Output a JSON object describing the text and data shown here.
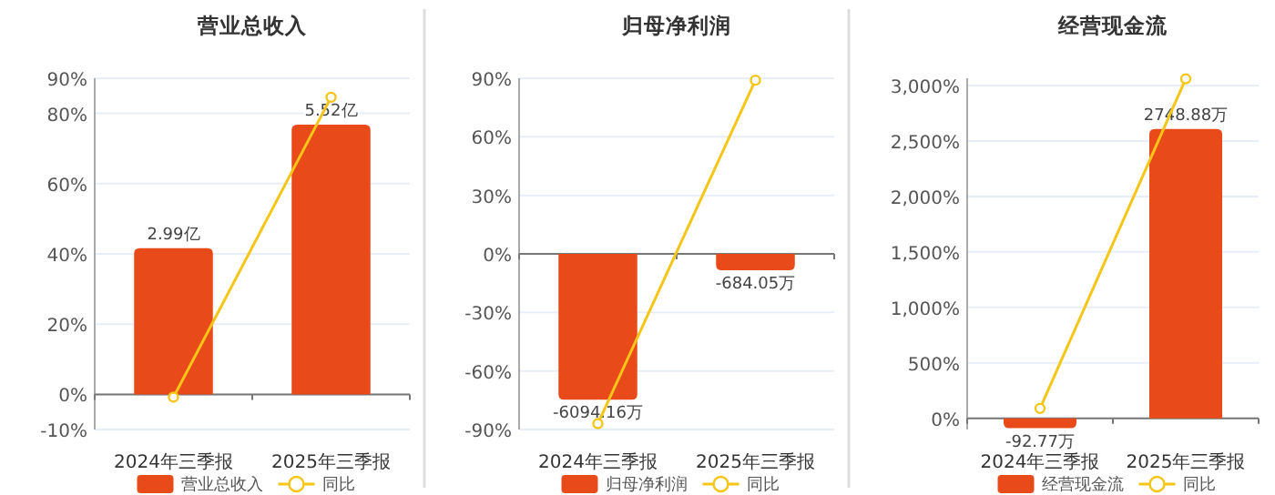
{
  "chart_data": [
    {
      "type": "bar",
      "title": "营业总收入",
      "categories": [
        "2024年三季报",
        "2025年三季报"
      ],
      "ylim": [
        -10,
        90
      ],
      "yticks": [
        {
          "value": -10,
          "label": "-10%"
        },
        {
          "value": 0,
          "label": "0%"
        },
        {
          "value": 20,
          "label": "20%"
        },
        {
          "value": 40,
          "label": "40%"
        },
        {
          "value": 60,
          "label": "60%"
        },
        {
          "value": 80,
          "label": "80%"
        },
        {
          "value": 90,
          "label": "90%"
        }
      ],
      "y2lim": [
        -0.719,
        6.47
      ],
      "grid": "y",
      "legend": "bottom",
      "marker": "circle",
      "series": [
        {
          "name": "营业总收入",
          "axis": "y2",
          "color": "#e84a1a",
          "values": [
            2.99,
            5.52
          ],
          "value_labels": [
            "2.99亿",
            "5.52亿"
          ]
        },
        {
          "name": "同比",
          "type": "line",
          "color": "#f5c518",
          "values": [
            -0.8,
            84.6
          ]
        }
      ]
    },
    {
      "type": "bar",
      "title": "归母净利润",
      "categories": [
        "2024年三季报",
        "2025年三季报"
      ],
      "ylim": [
        -90,
        90
      ],
      "yticks": [
        {
          "value": -90,
          "label": "-90%"
        },
        {
          "value": -60,
          "label": "-60%"
        },
        {
          "value": -30,
          "label": "-30%"
        },
        {
          "value": 0,
          "label": "0%"
        },
        {
          "value": 30,
          "label": "30%"
        },
        {
          "value": 60,
          "label": "60%"
        },
        {
          "value": 90,
          "label": "90%"
        }
      ],
      "y2lim": [
        -7344,
        7344
      ],
      "grid": "y",
      "legend": "bottom",
      "marker": "circle",
      "series": [
        {
          "name": "归母净利润",
          "axis": "y2",
          "color": "#e84a1a",
          "values": [
            -6094.16,
            -684.05
          ],
          "value_labels": [
            "-6094.16万",
            "-684.05万"
          ]
        },
        {
          "name": "同比",
          "type": "line",
          "color": "#f5c518",
          "values": [
            -87,
            89
          ]
        }
      ]
    },
    {
      "type": "bar",
      "title": "经营现金流",
      "categories": [
        "2024年三季报",
        "2025年三季报"
      ],
      "ylim": [
        -100,
        3065
      ],
      "yticks": [
        {
          "value": 0,
          "label": "0%"
        },
        {
          "value": 500,
          "label": "500%"
        },
        {
          "value": 1000,
          "label": "1,000%"
        },
        {
          "value": 1500,
          "label": "1,500%"
        },
        {
          "value": 2000,
          "label": "2,000%"
        },
        {
          "value": 2500,
          "label": "2,500%"
        },
        {
          "value": 3000,
          "label": "3,000%"
        }
      ],
      "y2lim": [
        -105.4,
        3230
      ],
      "grid": "y",
      "legend": "bottom",
      "marker": "circle",
      "series": [
        {
          "name": "经营现金流",
          "axis": "y2",
          "color": "#e84a1a",
          "values": [
            -92.77,
            2748.88
          ],
          "value_labels": [
            "-92.77万",
            "2748.88万"
          ]
        },
        {
          "name": "同比",
          "type": "line",
          "color": "#f5c518",
          "values": [
            90,
            3060
          ]
        }
      ]
    }
  ]
}
